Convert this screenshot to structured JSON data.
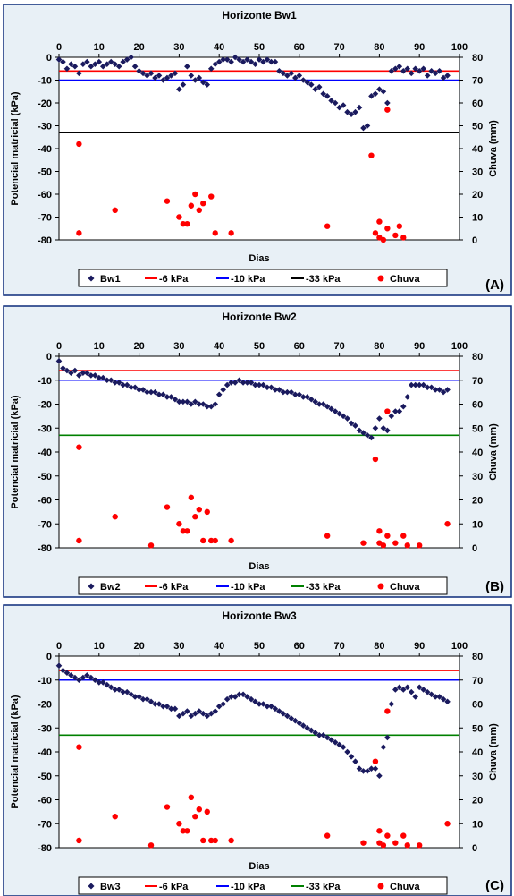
{
  "chart_data": [
    {
      "type": "scatter",
      "panel_label": "(A)",
      "title": "Horizonte Bw1",
      "xlabel": "Dias",
      "ylabel": "Potencial matricial (kPa)",
      "y2label": "Chuva (mm)",
      "xlim": [
        0,
        100
      ],
      "ylim": [
        -80,
        0
      ],
      "y2lim": [
        0,
        80
      ],
      "xticks": [
        "0",
        "10",
        "20",
        "30",
        "40",
        "50",
        "60",
        "70",
        "80",
        "90",
        "100"
      ],
      "yticks": [
        "0",
        "-10",
        "-20",
        "-30",
        "-40",
        "-50",
        "-60",
        "-70",
        "-80"
      ],
      "y2ticks": [
        "80",
        "70",
        "60",
        "50",
        "40",
        "30",
        "20",
        "10",
        "0"
      ],
      "grid": false,
      "legend_position": "bottom",
      "reference_lines": [
        {
          "name": "-6 kPa",
          "y": -6,
          "color": "#ff0000"
        },
        {
          "name": "-10 kPa",
          "y": -10,
          "color": "#0000ff"
        },
        {
          "name": "-33 kPa",
          "y": -33,
          "color": "#000000"
        }
      ],
      "series": [
        {
          "name": "Bw1",
          "axis": "left",
          "color": "#1a1a5e",
          "marker": "diamond",
          "x": [
            0,
            1,
            2,
            3,
            4,
            5,
            6,
            7,
            8,
            9,
            10,
            11,
            12,
            13,
            14,
            15,
            16,
            17,
            18,
            19,
            20,
            21,
            22,
            23,
            24,
            25,
            26,
            27,
            28,
            29,
            30,
            31,
            32,
            33,
            34,
            35,
            36,
            37,
            38,
            39,
            40,
            41,
            42,
            43,
            44,
            45,
            46,
            47,
            48,
            49,
            50,
            51,
            52,
            53,
            54,
            55,
            56,
            57,
            58,
            59,
            60,
            61,
            62,
            63,
            64,
            65,
            66,
            67,
            68,
            69,
            70,
            71,
            72,
            73,
            74,
            75,
            76,
            77,
            78,
            79,
            80,
            81,
            82,
            83,
            84,
            85,
            86,
            87,
            88,
            89,
            90,
            91,
            92,
            93,
            94,
            95,
            96,
            97
          ],
          "y": [
            -1,
            -2,
            -5,
            -3,
            -4,
            -7,
            -3,
            -2,
            -4,
            -3,
            -2,
            -4,
            -3,
            -2,
            -3,
            -4,
            -2,
            -1,
            0,
            -4,
            -6,
            -7,
            -8,
            -7,
            -9,
            -8,
            -10,
            -9,
            -8,
            -7,
            -14,
            -12,
            -4,
            -8,
            -10,
            -9,
            -11,
            -12,
            -5,
            -3,
            -2,
            -1,
            -1,
            -2,
            0,
            -1,
            -2,
            -1,
            -2,
            -3,
            -1,
            -2,
            -1,
            -2,
            -2,
            -6,
            -7,
            -8,
            -7,
            -9,
            -8,
            -10,
            -11,
            -12,
            -14,
            -13,
            -16,
            -17,
            -19,
            -20,
            -22,
            -21,
            -24,
            -25,
            -24,
            -22,
            -31,
            -30,
            -17,
            -16,
            -14,
            -15,
            -20,
            -6,
            -5,
            -4,
            -6,
            -5,
            -7,
            -5,
            -6,
            -5,
            -8,
            -6,
            -7,
            -6,
            -9,
            -8
          ]
        },
        {
          "name": "Chuva",
          "axis": "right",
          "color": "#ff0000",
          "marker": "circle",
          "x": [
            5,
            5,
            14,
            27,
            30,
            31,
            32,
            33,
            34,
            35,
            36,
            38,
            39,
            43,
            67,
            78,
            79,
            80,
            80,
            81,
            82,
            82,
            84,
            85,
            86
          ],
          "y": [
            42,
            3,
            13,
            17,
            10,
            7,
            7,
            15,
            20,
            13,
            16,
            19,
            3,
            3,
            6,
            37,
            3,
            1,
            8,
            0,
            5,
            57,
            2,
            6,
            1
          ]
        }
      ]
    },
    {
      "type": "scatter",
      "panel_label": "(B)",
      "title": "Horizonte Bw2",
      "xlabel": "Dias",
      "ylabel": "Potencial matricial (kPa)",
      "y2label": "Chuva (mm)",
      "xlim": [
        0,
        100
      ],
      "ylim": [
        -80,
        0
      ],
      "y2lim": [
        0,
        80
      ],
      "xticks": [
        "0",
        "10",
        "20",
        "30",
        "40",
        "50",
        "60",
        "70",
        "80",
        "90",
        "100"
      ],
      "yticks": [
        "0",
        "-10",
        "-20",
        "-30",
        "-40",
        "-50",
        "-60",
        "-70",
        "-80"
      ],
      "y2ticks": [
        "80",
        "70",
        "60",
        "50",
        "40",
        "30",
        "20",
        "10",
        "0"
      ],
      "grid": false,
      "legend_position": "bottom",
      "reference_lines": [
        {
          "name": "-6 kPa",
          "y": -6,
          "color": "#ff0000"
        },
        {
          "name": "-10 kPa",
          "y": -10,
          "color": "#0000ff"
        },
        {
          "name": "-33 kPa",
          "y": -33,
          "color": "#008000"
        }
      ],
      "series": [
        {
          "name": "Bw2",
          "axis": "left",
          "color": "#1a1a5e",
          "marker": "diamond",
          "x": [
            0,
            1,
            2,
            3,
            4,
            5,
            6,
            7,
            8,
            9,
            10,
            11,
            12,
            13,
            14,
            15,
            16,
            17,
            18,
            19,
            20,
            21,
            22,
            23,
            24,
            25,
            26,
            27,
            28,
            29,
            30,
            31,
            32,
            33,
            34,
            35,
            36,
            37,
            38,
            39,
            40,
            41,
            42,
            43,
            44,
            45,
            46,
            47,
            48,
            49,
            50,
            51,
            52,
            53,
            54,
            55,
            56,
            57,
            58,
            59,
            60,
            61,
            62,
            63,
            64,
            65,
            66,
            67,
            68,
            69,
            70,
            71,
            72,
            73,
            74,
            75,
            76,
            77,
            78,
            79,
            80,
            81,
            82,
            83,
            84,
            85,
            86,
            87,
            88,
            89,
            90,
            91,
            92,
            93,
            94,
            95,
            96,
            97
          ],
          "y": [
            -2,
            -5,
            -6,
            -7,
            -6,
            -8,
            -7,
            -7,
            -8,
            -8,
            -9,
            -9,
            -10,
            -10,
            -11,
            -11,
            -12,
            -12,
            -13,
            -13,
            -14,
            -14,
            -15,
            -15,
            -15,
            -16,
            -16,
            -17,
            -17,
            -18,
            -19,
            -19,
            -19,
            -20,
            -19,
            -20,
            -20,
            -21,
            -21,
            -20,
            -16,
            -14,
            -12,
            -11,
            -11,
            -10,
            -11,
            -11,
            -11,
            -12,
            -12,
            -12,
            -13,
            -13,
            -14,
            -14,
            -15,
            -15,
            -15,
            -16,
            -16,
            -17,
            -17,
            -18,
            -19,
            -20,
            -20,
            -21,
            -22,
            -23,
            -24,
            -25,
            -26,
            -28,
            -29,
            -31,
            -32,
            -33,
            -34,
            -30,
            -26,
            -30,
            -31,
            -25,
            -23,
            -23,
            -21,
            -17,
            -12,
            -12,
            -12,
            -12,
            -13,
            -13,
            -14,
            -14,
            -15,
            -14
          ]
        },
        {
          "name": "Chuva",
          "axis": "right",
          "color": "#ff0000",
          "marker": "circle",
          "x": [
            5,
            5,
            14,
            23,
            27,
            30,
            31,
            32,
            33,
            34,
            35,
            36,
            37,
            38,
            39,
            43,
            67,
            76,
            79,
            80,
            80,
            81,
            82,
            82,
            84,
            86,
            87,
            90,
            97
          ],
          "y": [
            42,
            3,
            13,
            1,
            17,
            10,
            7,
            7,
            21,
            13,
            16,
            3,
            15,
            3,
            3,
            3,
            5,
            2,
            37,
            7,
            2,
            1,
            57,
            5,
            2,
            5,
            1,
            1,
            10
          ]
        }
      ]
    },
    {
      "type": "scatter",
      "panel_label": "(C)",
      "title": "Horizonte Bw3",
      "xlabel": "Dias",
      "ylabel": "Potencial matricial (kPa)",
      "y2label": "Chuva (mm)",
      "xlim": [
        0,
        100
      ],
      "ylim": [
        -80,
        0
      ],
      "y2lim": [
        0,
        80
      ],
      "xticks": [
        "0",
        "10",
        "20",
        "30",
        "40",
        "50",
        "60",
        "70",
        "80",
        "90",
        "100"
      ],
      "yticks": [
        "0",
        "-10",
        "-20",
        "-30",
        "-40",
        "-50",
        "-60",
        "-70",
        "-80"
      ],
      "y2ticks": [
        "80",
        "70",
        "60",
        "50",
        "40",
        "30",
        "20",
        "10",
        "0"
      ],
      "grid": false,
      "legend_position": "bottom",
      "reference_lines": [
        {
          "name": "-6 kPa",
          "y": -6,
          "color": "#ff0000"
        },
        {
          "name": "-10 kPa",
          "y": -10,
          "color": "#0000ff"
        },
        {
          "name": "-33 kPa",
          "y": -33,
          "color": "#008000"
        }
      ],
      "series": [
        {
          "name": "Bw3",
          "axis": "left",
          "color": "#1a1a5e",
          "marker": "diamond",
          "x": [
            0,
            1,
            2,
            3,
            4,
            5,
            6,
            7,
            8,
            9,
            10,
            11,
            12,
            13,
            14,
            15,
            16,
            17,
            18,
            19,
            20,
            21,
            22,
            23,
            24,
            25,
            26,
            27,
            28,
            29,
            30,
            31,
            32,
            33,
            34,
            35,
            36,
            37,
            38,
            39,
            40,
            41,
            42,
            43,
            44,
            45,
            46,
            47,
            48,
            49,
            50,
            51,
            52,
            53,
            54,
            55,
            56,
            57,
            58,
            59,
            60,
            61,
            62,
            63,
            64,
            65,
            66,
            67,
            68,
            69,
            70,
            71,
            72,
            73,
            74,
            75,
            76,
            77,
            78,
            79,
            80,
            81,
            82,
            83,
            84,
            85,
            86,
            87,
            88,
            89,
            90,
            91,
            92,
            93,
            94,
            95,
            96,
            97
          ],
          "y": [
            -4,
            -6,
            -7,
            -8,
            -9,
            -10,
            -9,
            -8,
            -9,
            -10,
            -11,
            -11,
            -12,
            -13,
            -14,
            -14,
            -15,
            -15,
            -16,
            -17,
            -17,
            -18,
            -18,
            -19,
            -20,
            -20,
            -21,
            -21,
            -22,
            -22,
            -25,
            -24,
            -23,
            -25,
            -24,
            -23,
            -24,
            -25,
            -24,
            -23,
            -21,
            -20,
            -18,
            -17,
            -17,
            -16,
            -16,
            -17,
            -18,
            -19,
            -20,
            -20,
            -21,
            -21,
            -22,
            -23,
            -24,
            -25,
            -26,
            -27,
            -28,
            -29,
            -30,
            -31,
            -32,
            -33,
            -33,
            -34,
            -35,
            -36,
            -37,
            -38,
            -40,
            -42,
            -44,
            -47,
            -48,
            -48,
            -47,
            -47,
            -50,
            -38,
            -34,
            -20,
            -14,
            -13,
            -14,
            -13,
            -15,
            -17,
            -13,
            -14,
            -15,
            -16,
            -17,
            -17,
            -18,
            -19
          ]
        },
        {
          "name": "Chuva",
          "axis": "right",
          "color": "#ff0000",
          "marker": "circle",
          "x": [
            5,
            5,
            14,
            23,
            27,
            30,
            31,
            32,
            33,
            34,
            35,
            36,
            37,
            38,
            39,
            43,
            67,
            76,
            79,
            80,
            80,
            81,
            82,
            82,
            84,
            86,
            87,
            90,
            97
          ],
          "y": [
            42,
            3,
            13,
            1,
            17,
            10,
            7,
            7,
            21,
            13,
            16,
            3,
            15,
            3,
            3,
            3,
            5,
            2,
            36,
            7,
            2,
            1,
            57,
            5,
            2,
            5,
            1,
            1,
            10
          ]
        }
      ]
    }
  ]
}
